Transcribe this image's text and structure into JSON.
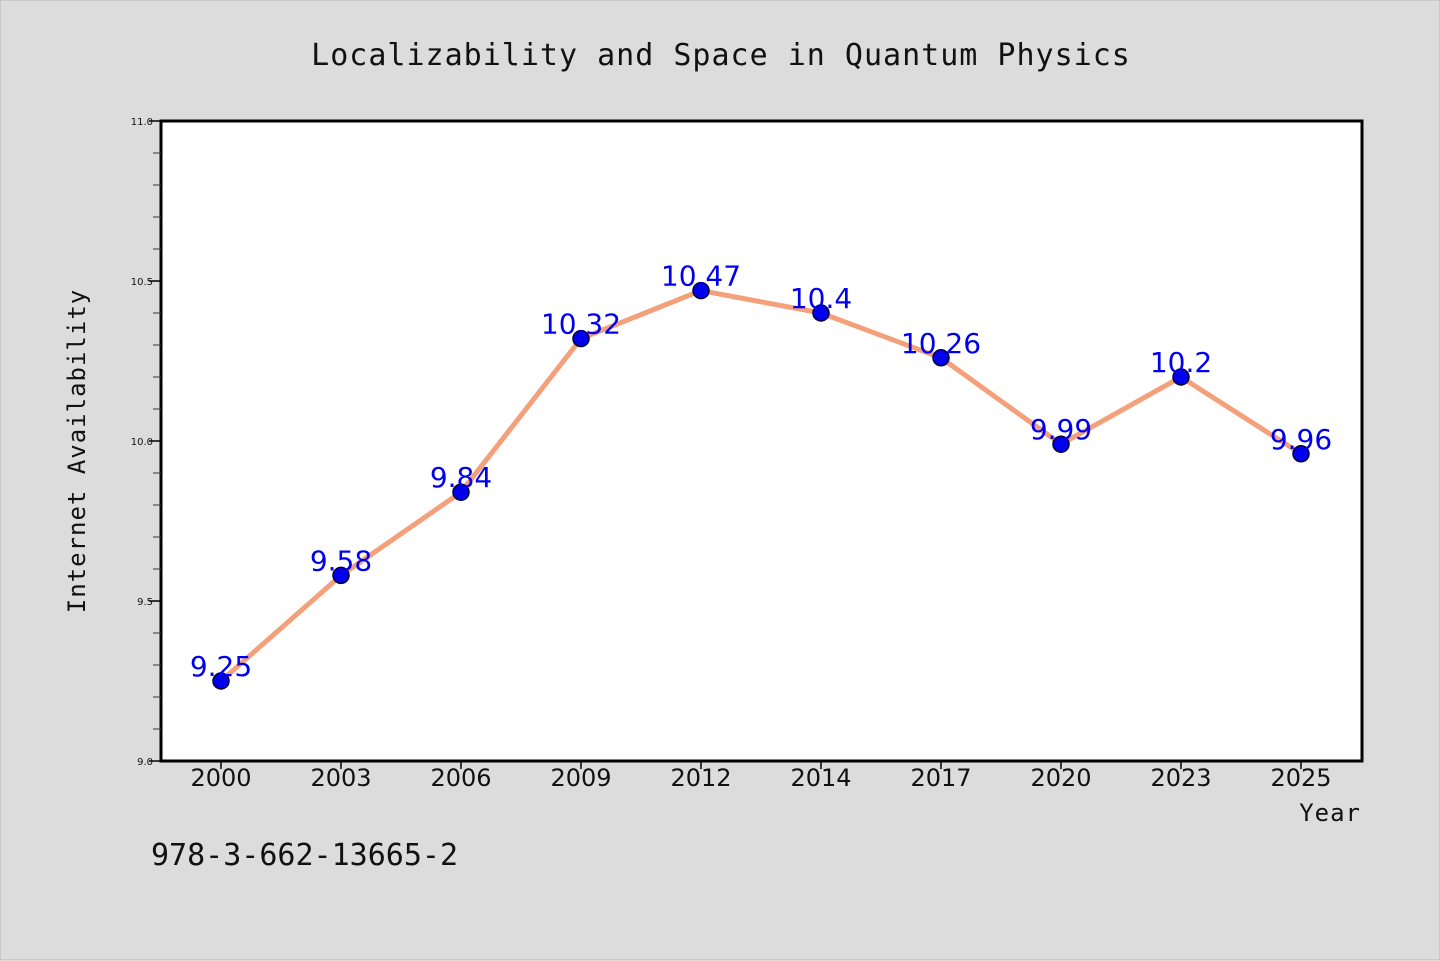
{
  "chart_data": {
    "type": "line",
    "title": "Localizability and Space in Quantum Physics",
    "xlabel": "Year",
    "ylabel": "Internet Availability",
    "categories": [
      "2000",
      "2003",
      "2006",
      "2009",
      "2012",
      "2014",
      "2017",
      "2020",
      "2023",
      "2025"
    ],
    "series": [
      {
        "values": [
          9.25,
          9.58,
          9.84,
          10.32,
          10.47,
          10.4,
          10.26,
          9.99,
          10.2,
          9.96
        ]
      }
    ],
    "data_labels": [
      "9.25",
      "9.58",
      "9.84",
      "10.32",
      "10.47",
      "10.4",
      "10.26",
      "9.99",
      "10.2",
      "9.96"
    ],
    "ylim": [
      9.0,
      11.0
    ],
    "yticks": [
      "9.0",
      "9.5",
      "10.0",
      "10.5",
      "11.0"
    ],
    "ytick_values": [
      9.0,
      9.5,
      10.0,
      10.5,
      11.0
    ],
    "grid": false,
    "line_color": "#f4a07a",
    "marker_color": "#0000ee",
    "label_color": "#0000ee",
    "background_color": "#dcdcdc",
    "plot_background": "#ffffff"
  },
  "annotation": {
    "isbn": "978-3-662-13665-2"
  }
}
